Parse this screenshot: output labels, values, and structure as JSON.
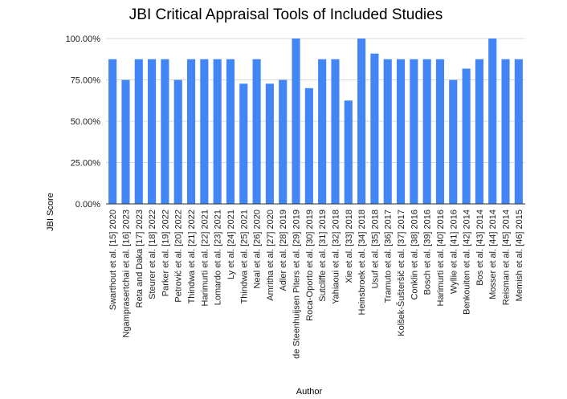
{
  "chart_data": {
    "type": "bar",
    "title": "JBI Critical Appraisal Tools of Included Studies",
    "xlabel": "Author",
    "ylabel": "JBI Score",
    "ylim": [
      0,
      100
    ],
    "yticks": [
      "0.00%",
      "25.00%",
      "50.00%",
      "75.00%",
      "100.00%"
    ],
    "ytick_values": [
      0,
      25,
      50,
      75,
      100
    ],
    "grid": true,
    "bar_color": "#4285f4",
    "categories": [
      "Swarthout et al. [15] 2020",
      "Ngamprasertchai et al. [16] 2023",
      "Reta and Daka [17] 2023",
      "Steurer et al. [18] 2022",
      "Parker et al. [19] 2022",
      "Petrović et al. [20] 2022",
      "Thindwa et al. [21] 2022",
      "Harimurti et al. [22] 2021",
      "Lomardo et al. [23] 2021",
      "Ly et al. [24] 2021",
      "Thindwa et al. [25] 2021",
      "Neal et al. [26] 2020",
      "Amritha et al. [27] 2020",
      "Adler et al. [28] 2019",
      "de Steenhuijsen Piters et al. [29] 2019",
      "Roca-Oporto et al. [30] 2019",
      "Sutcliffe et al. [31] 2019",
      "Yahiaoui et al. [32] 2018",
      "Xie et al. [33] 2018",
      "Heinsbroek et al. [34] 2018",
      "Usuf et al. [35] 2018",
      "Tramuto et al. [36] 2017",
      "Kolšek-Šušteršič et al. [37] 2017",
      "Conklin et al. [38] 2016",
      "Bosch et al. [39] 2016",
      "Harimurti et al. [40] 2016",
      "Wyllie et al. [41] 2016",
      "Benkouiten et al. [42] 2014",
      "Bos et al. [43] 2014",
      "Mosser et al. [44] 2014",
      "Reisman et al. [45] 2014",
      "Memish et al. [46] 2015"
    ],
    "values": [
      87.5,
      75,
      87.5,
      87.5,
      87.5,
      75,
      87.5,
      87.5,
      87.5,
      87.5,
      72.7,
      87.5,
      72.7,
      75,
      100,
      70,
      87.5,
      87.5,
      62.5,
      100,
      90.9,
      87.5,
      87.5,
      87.5,
      87.5,
      87.5,
      75,
      81.8,
      87.5,
      100,
      87.5,
      87.5
    ]
  }
}
